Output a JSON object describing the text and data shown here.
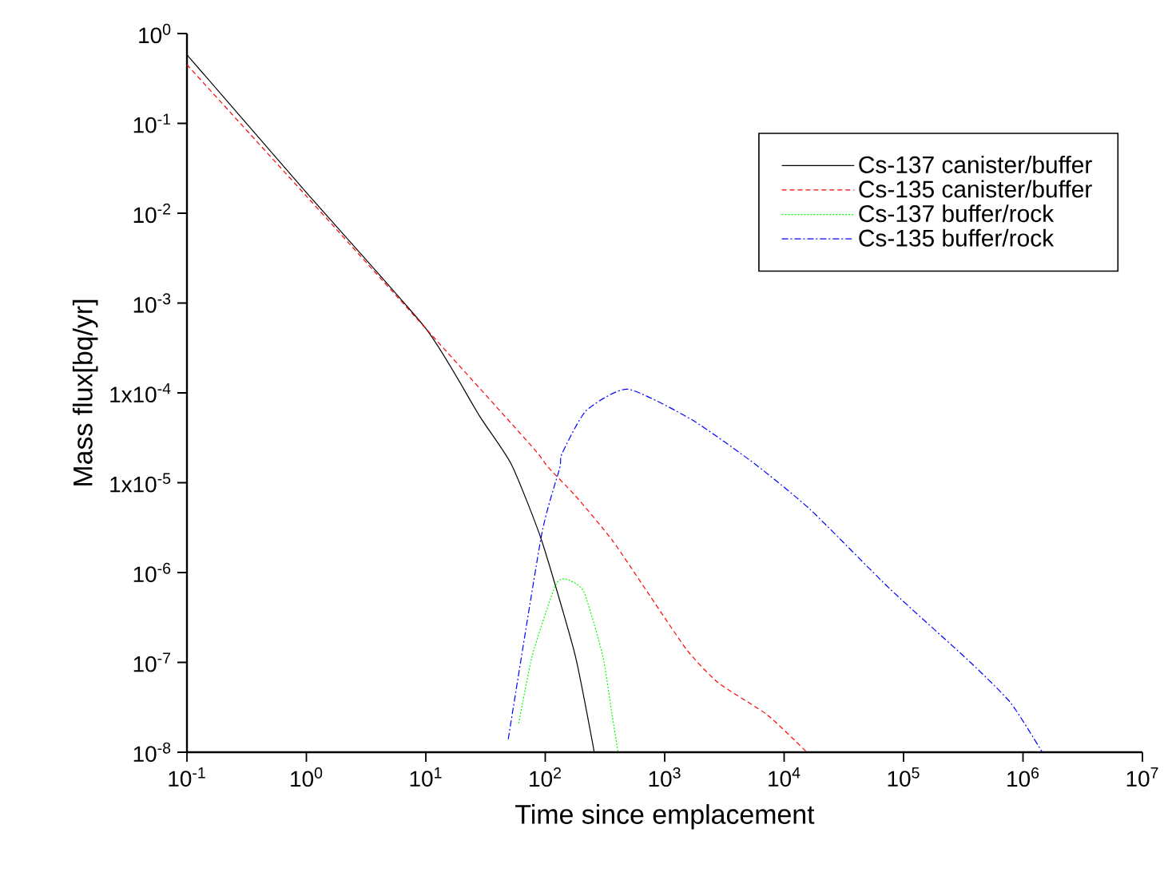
{
  "chart_data": {
    "type": "line",
    "xlabel": "Time since emplacement",
    "ylabel": "Mass flux[bq/yr]",
    "log": "xy",
    "grid": false,
    "legend": "top right",
    "marker": "none",
    "xlim": [
      0.1,
      10000000
    ],
    "ylim": [
      1e-08,
      1
    ],
    "xticks": [
      {
        "value": 0.1,
        "label": "10$^{-1}$"
      },
      {
        "value": 1,
        "label": "10$^{0}$"
      },
      {
        "value": 10,
        "label": "10$^{1}$"
      },
      {
        "value": 100,
        "label": "10$^{2}$"
      },
      {
        "value": 1000,
        "label": "10$^{3}$"
      },
      {
        "value": 10000,
        "label": "10$^{4}$"
      },
      {
        "value": 100000,
        "label": "10$^{5}$"
      },
      {
        "value": 1000000,
        "label": "10$^{6}$"
      },
      {
        "value": 10000000,
        "label": "10$^{7}$"
      }
    ],
    "yticks": [
      {
        "value": 1e-08,
        "label": "10$^{-8}$"
      },
      {
        "value": 1e-07,
        "label": "10$^{-7}$"
      },
      {
        "value": 1e-06,
        "label": "10$^{-6}$"
      },
      {
        "value": 1e-05,
        "label": "1x10$^{-5}$"
      },
      {
        "value": 0.0001,
        "label": "1x10$^{-4}$"
      },
      {
        "value": 0.001,
        "label": "10$^{-3}$"
      },
      {
        "value": 0.01,
        "label": "10$^{-2}$"
      },
      {
        "value": 0.1,
        "label": "10$^{-1}$"
      },
      {
        "value": 1,
        "label": "10$^{0}$"
      }
    ],
    "series": [
      {
        "name": "Cs-137 canister/buffer",
        "color": "#000000",
        "line_style": "solid",
        "x": [
          0.1,
          1,
          10,
          28,
          52,
          93,
          178,
          257
        ],
        "values": [
          0.58,
          0.017,
          0.00052,
          5.6e-05,
          1.6e-05,
          2.3e-06,
          1.2e-07,
          1e-08
        ]
      },
      {
        "name": "Cs-135 canister/buffer",
        "color": "#ff0000",
        "line_style": "dashed",
        "x": [
          0.1,
          1,
          10,
          78,
          105,
          178,
          363,
          760,
          1550,
          2820,
          7240,
          15500
        ],
        "values": [
          0.45,
          0.0155,
          0.00052,
          2.5e-05,
          1.5e-05,
          7.2e-06,
          2.3e-06,
          5.4e-07,
          1.35e-07,
          5.9e-08,
          2.6e-08,
          1e-08
        ]
      },
      {
        "name": "Cs-137 buffer/rock",
        "color": "#00ff00",
        "line_style": "dotted",
        "x": [
          60,
          78,
          120,
          145,
          209,
          302,
          363,
          407
        ],
        "values": [
          2.1e-08,
          1.2e-07,
          6.9e-07,
          8.5e-07,
          6.2e-07,
          1.2e-07,
          2.6e-08,
          1e-08
        ]
      },
      {
        "name": "Cs-135 buffer/rock",
        "color": "#0000ff",
        "line_style": "dashdot",
        "x": [
          49,
          93,
          132,
          138,
          219,
          490,
          1700,
          5750,
          16600,
          77600,
          363000,
          794000,
          1450000
        ],
        "values": [
          1.4e-08,
          2.6e-06,
          1.45e-05,
          2.1e-05,
          6.3e-05,
          0.00011,
          5e-05,
          1.6e-05,
          5e-06,
          6.5e-07,
          1e-07,
          3.5e-08,
          1e-08
        ]
      }
    ]
  }
}
